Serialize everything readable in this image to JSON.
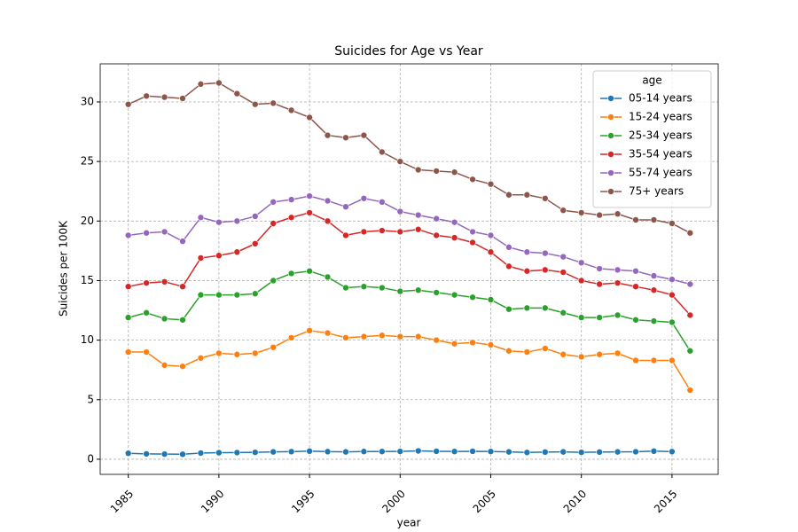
{
  "chart_data": {
    "type": "line",
    "title": "Suicides for Age vs Year",
    "x_label": "year",
    "y_label": "Suicides per 100K",
    "x": [
      1985,
      1986,
      1987,
      1988,
      1989,
      1990,
      1991,
      1992,
      1993,
      1994,
      1995,
      1996,
      1997,
      1998,
      1999,
      2000,
      2001,
      2002,
      2003,
      2004,
      2005,
      2006,
      2007,
      2008,
      2009,
      2010,
      2011,
      2012,
      2013,
      2014,
      2015,
      2016
    ],
    "xlim": [
      1983.45,
      2017.55
    ],
    "xticks": [
      1985,
      1990,
      1995,
      2000,
      2005,
      2010,
      2015
    ],
    "ylim": [
      -1.27,
      33.2
    ],
    "yticks": [
      0,
      5,
      10,
      15,
      20,
      25,
      30
    ],
    "grid": true,
    "legend_title": "age",
    "legend_position": "upper right",
    "series": [
      {
        "name": "05-14 years",
        "color": "#1f77b4",
        "values": [
          0.5,
          0.45,
          0.43,
          0.42,
          0.52,
          0.55,
          0.56,
          0.58,
          0.62,
          0.64,
          0.68,
          0.64,
          0.62,
          0.65,
          0.65,
          0.66,
          0.7,
          0.67,
          0.65,
          0.67,
          0.65,
          0.62,
          0.57,
          0.6,
          0.62,
          0.58,
          0.6,
          0.62,
          0.63,
          0.68,
          0.64,
          null
        ]
      },
      {
        "name": "15-24 years",
        "color": "#ff7f0e",
        "values": [
          9.0,
          9.0,
          7.9,
          7.8,
          8.5,
          8.9,
          8.8,
          8.9,
          9.4,
          10.2,
          10.8,
          10.6,
          10.2,
          10.3,
          10.4,
          10.3,
          10.3,
          10.0,
          9.7,
          9.8,
          9.6,
          9.1,
          9.0,
          9.3,
          8.8,
          8.6,
          8.8,
          8.9,
          8.3,
          8.3,
          8.3,
          5.8
        ]
      },
      {
        "name": "25-34 years",
        "color": "#2ca02c",
        "values": [
          11.9,
          12.3,
          11.8,
          11.7,
          13.8,
          13.8,
          13.8,
          13.9,
          15.0,
          15.6,
          15.8,
          15.3,
          14.4,
          14.5,
          14.4,
          14.1,
          14.2,
          14.0,
          13.8,
          13.6,
          13.4,
          12.6,
          12.7,
          12.7,
          12.3,
          11.9,
          11.9,
          12.1,
          11.7,
          11.6,
          11.5,
          9.1
        ]
      },
      {
        "name": "35-54 years",
        "color": "#d62728",
        "values": [
          14.5,
          14.8,
          14.9,
          14.5,
          16.9,
          17.1,
          17.4,
          18.1,
          19.8,
          20.3,
          20.7,
          20.0,
          18.8,
          19.1,
          19.2,
          19.1,
          19.3,
          18.8,
          18.6,
          18.2,
          17.4,
          16.2,
          15.8,
          15.9,
          15.7,
          15.0,
          14.7,
          14.8,
          14.5,
          14.2,
          13.8,
          12.1
        ]
      },
      {
        "name": "55-74 years",
        "color": "#9467bd",
        "values": [
          18.8,
          19.0,
          19.1,
          18.3,
          20.3,
          19.9,
          20.0,
          20.4,
          21.6,
          21.8,
          22.1,
          21.7,
          21.2,
          21.9,
          21.6,
          20.8,
          20.5,
          20.2,
          19.9,
          19.1,
          18.8,
          17.8,
          17.4,
          17.3,
          17.0,
          16.5,
          16.0,
          15.9,
          15.8,
          15.4,
          15.1,
          14.7
        ]
      },
      {
        "name": "75+ years",
        "color": "#8c564b",
        "values": [
          29.8,
          30.5,
          30.4,
          30.3,
          31.5,
          31.6,
          30.7,
          29.8,
          29.9,
          29.3,
          28.7,
          27.2,
          27.0,
          27.2,
          25.8,
          25.0,
          24.3,
          24.2,
          24.1,
          23.5,
          23.1,
          22.2,
          22.2,
          21.9,
          20.9,
          20.7,
          20.5,
          20.6,
          20.1,
          20.1,
          19.8,
          19.0
        ]
      }
    ]
  }
}
